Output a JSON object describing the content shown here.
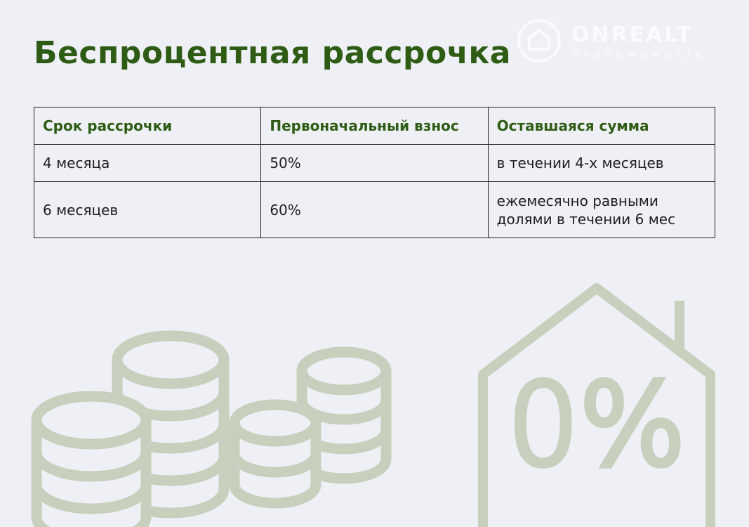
{
  "watermark": {
    "brand": "ONREALT",
    "tagline": "НЕДВИЖИМОСТЬ"
  },
  "header": {
    "title": "Беспроцентная рассрочка"
  },
  "table": {
    "columns": [
      "Срок рассрочки",
      "Первоначальный взнос",
      "Оставшаяся сумма"
    ],
    "rows": [
      [
        "4 месяца",
        "50%",
        [
          "в течении 4-х месяцев"
        ]
      ],
      [
        "6 месяцев",
        "60%",
        [
          "ежемесячно равными",
          "долями в течении 6 мес"
        ]
      ]
    ]
  },
  "icon": {
    "label": "0%"
  }
}
